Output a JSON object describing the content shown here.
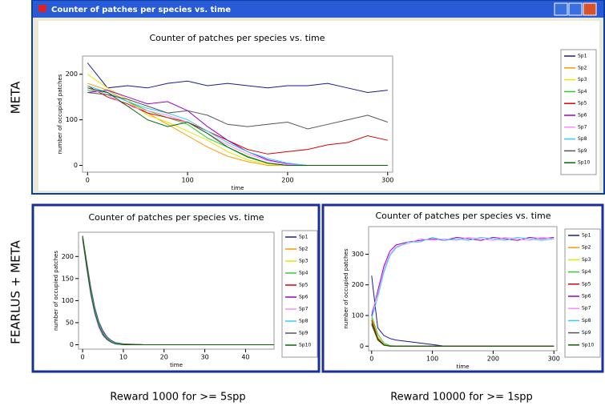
{
  "labels": {
    "window_title": "Counter of patches per species vs. time",
    "row_labels": [
      "META",
      "FEARLUS + META"
    ],
    "captions": [
      "Reward 1000 for >= 5spp",
      "Reward 10000 for >= 1spp"
    ]
  },
  "chart_data": [
    {
      "type": "line",
      "title": "Counter of patches per species vs. time",
      "x_label": "time",
      "y_label": "number of occupied patches",
      "x": [
        0,
        20,
        40,
        60,
        80,
        100,
        120,
        140,
        160,
        180,
        200,
        220,
        240,
        260,
        280,
        300
      ],
      "xlim": [
        -5,
        305
      ],
      "xticks": [
        0,
        100,
        200,
        300
      ],
      "ylim": [
        -15,
        240
      ],
      "yticks": [
        0,
        100,
        200
      ],
      "series": [
        {
          "name": "Sp1",
          "color": "#1a1a8c",
          "values": [
            225,
            170,
            175,
            170,
            180,
            185,
            175,
            180,
            175,
            170,
            175,
            175,
            180,
            170,
            160,
            165
          ]
        },
        {
          "name": "Sp2",
          "color": "#ff9900",
          "values": [
            180,
            165,
            140,
            115,
            90,
            65,
            40,
            20,
            8,
            0,
            0,
            0,
            0,
            0,
            0,
            0
          ]
        },
        {
          "name": "Sp3",
          "color": "#e6e600",
          "values": [
            200,
            170,
            145,
            110,
            95,
            75,
            55,
            30,
            12,
            3,
            0,
            0,
            0,
            0,
            0,
            0
          ]
        },
        {
          "name": "Sp4",
          "color": "#33cc33",
          "values": [
            165,
            160,
            140,
            120,
            105,
            90,
            60,
            40,
            20,
            5,
            0,
            0,
            0,
            0,
            0,
            0
          ]
        },
        {
          "name": "Sp5",
          "color": "#dd0000",
          "values": [
            175,
            150,
            135,
            115,
            105,
            95,
            75,
            55,
            35,
            25,
            30,
            35,
            45,
            50,
            65,
            55
          ]
        },
        {
          "name": "Sp6",
          "color": "#9900cc",
          "values": [
            160,
            165,
            150,
            135,
            140,
            120,
            85,
            55,
            30,
            12,
            3,
            0,
            0,
            0,
            0,
            0
          ]
        },
        {
          "name": "Sp7",
          "color": "#ff88ff",
          "values": [
            170,
            155,
            130,
            120,
            110,
            95,
            70,
            45,
            25,
            10,
            2,
            0,
            0,
            0,
            0,
            0
          ]
        },
        {
          "name": "Sp8",
          "color": "#33ccff",
          "values": [
            175,
            160,
            140,
            125,
            115,
            100,
            75,
            50,
            30,
            15,
            5,
            0,
            0,
            0,
            0,
            0
          ]
        },
        {
          "name": "Sp9",
          "color": "#555555",
          "values": [
            160,
            155,
            145,
            130,
            115,
            120,
            110,
            90,
            85,
            90,
            95,
            80,
            90,
            100,
            110,
            95
          ]
        },
        {
          "name": "Sp10",
          "color": "#006600",
          "values": [
            170,
            160,
            130,
            100,
            85,
            95,
            70,
            40,
            18,
            5,
            0,
            0,
            0,
            0,
            0,
            0
          ]
        }
      ]
    },
    {
      "type": "line",
      "title": "Counter of patches per species vs. time",
      "x_label": "time",
      "y_label": "number of occupied patches",
      "x": [
        0,
        1,
        2,
        3,
        4,
        5,
        6,
        7,
        8,
        10,
        15,
        20,
        30,
        47
      ],
      "xlim": [
        -1,
        47
      ],
      "xticks": [
        0,
        10,
        20,
        30,
        40
      ],
      "ylim": [
        -10,
        255
      ],
      "yticks": [
        0,
        50,
        100,
        150,
        200
      ],
      "series": [
        {
          "name": "Sp1",
          "color": "#1a1a8c",
          "values": [
            245,
            180,
            120,
            75,
            45,
            25,
            14,
            7,
            3,
            1,
            0,
            0,
            0,
            0
          ]
        },
        {
          "name": "Sp2",
          "color": "#ff9900",
          "values": [
            240,
            175,
            115,
            70,
            40,
            22,
            12,
            6,
            2,
            0,
            0,
            0,
            0,
            0
          ]
        },
        {
          "name": "Sp3",
          "color": "#e6e600",
          "values": [
            248,
            185,
            125,
            80,
            48,
            28,
            15,
            8,
            3,
            1,
            0,
            0,
            0,
            0
          ]
        },
        {
          "name": "Sp4",
          "color": "#33cc33",
          "values": [
            242,
            178,
            118,
            72,
            42,
            24,
            13,
            6,
            2,
            0,
            0,
            0,
            0,
            0
          ]
        },
        {
          "name": "Sp5",
          "color": "#dd0000",
          "values": [
            246,
            182,
            122,
            78,
            46,
            26,
            14,
            7,
            3,
            1,
            0,
            0,
            0,
            0
          ]
        },
        {
          "name": "Sp6",
          "color": "#9900cc",
          "values": [
            244,
            185,
            128,
            82,
            50,
            30,
            17,
            9,
            4,
            1,
            0,
            0,
            0,
            0
          ]
        },
        {
          "name": "Sp7",
          "color": "#ff88ff",
          "values": [
            238,
            172,
            112,
            68,
            38,
            20,
            11,
            5,
            2,
            0,
            0,
            0,
            0,
            0
          ]
        },
        {
          "name": "Sp8",
          "color": "#33ccff",
          "values": [
            243,
            180,
            124,
            79,
            47,
            27,
            15,
            8,
            3,
            1,
            0,
            0,
            0,
            0
          ]
        },
        {
          "name": "Sp9",
          "color": "#555555",
          "values": [
            247,
            188,
            130,
            85,
            52,
            32,
            18,
            10,
            5,
            2,
            0,
            0,
            0,
            0
          ]
        },
        {
          "name": "Sp10",
          "color": "#006600",
          "values": [
            241,
            176,
            116,
            73,
            43,
            23,
            12,
            6,
            2,
            0,
            0,
            0,
            0,
            0
          ]
        }
      ]
    },
    {
      "type": "line",
      "title": "Counter of patches per species vs. time",
      "x_label": "time",
      "y_label": "number of occupied patches",
      "x": [
        0,
        10,
        20,
        30,
        40,
        60,
        80,
        100,
        120,
        140,
        160,
        180,
        200,
        220,
        240,
        260,
        280,
        300
      ],
      "xlim": [
        -5,
        305
      ],
      "xticks": [
        0,
        100,
        200,
        300
      ],
      "ylim": [
        -15,
        390
      ],
      "yticks": [
        0,
        100,
        200,
        300
      ],
      "series": [
        {
          "name": "Sp1",
          "color": "#1a1a8c",
          "values": [
            230,
            60,
            35,
            25,
            20,
            15,
            10,
            5,
            0,
            0,
            0,
            0,
            0,
            0,
            0,
            0,
            0,
            0
          ]
        },
        {
          "name": "Sp2",
          "color": "#ff9900",
          "values": [
            90,
            30,
            5,
            0,
            0,
            0,
            0,
            0,
            0,
            0,
            0,
            0,
            0,
            0,
            0,
            0,
            0,
            0
          ]
        },
        {
          "name": "Sp3",
          "color": "#e6e600",
          "values": [
            80,
            20,
            3,
            0,
            0,
            0,
            0,
            0,
            0,
            0,
            0,
            0,
            0,
            0,
            0,
            0,
            0,
            0
          ]
        },
        {
          "name": "Sp4",
          "color": "#33cc33",
          "values": [
            100,
            40,
            10,
            2,
            0,
            0,
            0,
            0,
            0,
            0,
            0,
            0,
            0,
            0,
            0,
            0,
            0,
            0
          ]
        },
        {
          "name": "Sp5",
          "color": "#dd0000",
          "values": [
            85,
            25,
            5,
            0,
            0,
            0,
            0,
            0,
            0,
            0,
            0,
            0,
            0,
            0,
            0,
            0,
            0,
            0
          ]
        },
        {
          "name": "Sp6",
          "color": "#9900cc",
          "values": [
            100,
            180,
            260,
            310,
            330,
            340,
            345,
            350,
            345,
            355,
            350,
            345,
            355,
            350,
            345,
            355,
            350,
            355
          ]
        },
        {
          "name": "Sp7",
          "color": "#ff88ff",
          "values": [
            110,
            170,
            250,
            300,
            325,
            335,
            350,
            345,
            350,
            345,
            355,
            350,
            345,
            355,
            350,
            345,
            355,
            350
          ]
        },
        {
          "name": "Sp8",
          "color": "#33ccff",
          "values": [
            90,
            160,
            240,
            295,
            320,
            340,
            340,
            355,
            345,
            350,
            345,
            355,
            350,
            345,
            355,
            350,
            345,
            350
          ]
        },
        {
          "name": "Sp9",
          "color": "#555555",
          "values": [
            70,
            20,
            3,
            0,
            0,
            0,
            0,
            0,
            0,
            0,
            0,
            0,
            0,
            0,
            0,
            0,
            0,
            0
          ]
        },
        {
          "name": "Sp10",
          "color": "#006600",
          "values": [
            75,
            22,
            4,
            0,
            0,
            0,
            0,
            0,
            0,
            0,
            0,
            0,
            0,
            0,
            0,
            0,
            0,
            0
          ]
        }
      ]
    }
  ]
}
